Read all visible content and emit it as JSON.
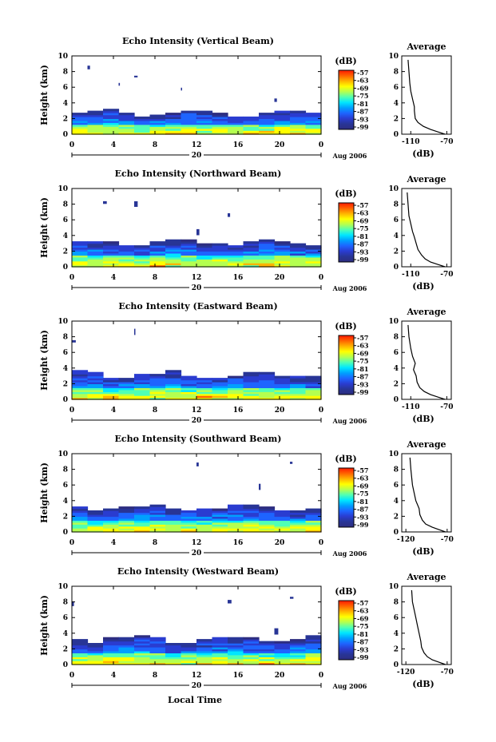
{
  "figure": {
    "xlabel": "Local Time",
    "date_label": "Aug 2006",
    "colorbar_unit": "(dB)",
    "colorbar_ticks": [
      "-57",
      "-63",
      "-69",
      "-75",
      "-81",
      "-87",
      "-93",
      "-99"
    ],
    "colormap": [
      "#ff1a00",
      "#ff6400",
      "#ffb400",
      "#ffff00",
      "#b4ff50",
      "#50ffb4",
      "#00e6ff",
      "#00a0ff",
      "#1e64ff",
      "#2a3cd0",
      "#283596",
      "#2d2d80"
    ]
  },
  "chart_data": [
    {
      "type": "heatmap",
      "title": "Echo Intensity (Vertical Beam)",
      "ylabel": "Height (km)",
      "x_ticks": [
        "0",
        "4",
        "8",
        "12",
        "16",
        "20",
        "0"
      ],
      "day_label": "20",
      "y_ticks": [
        "0",
        "2",
        "4",
        "6",
        "8",
        "10"
      ],
      "xlim": [
        0,
        24
      ],
      "ylim": [
        0,
        10
      ],
      "cloud_top_km": 2.6,
      "strong_layer_km": 1.2,
      "profile": {
        "title": "Average",
        "xlabel": "(dB)",
        "x_ticks": [
          "-110",
          "-70"
        ],
        "y_ticks": [
          "0",
          "2",
          "4",
          "6",
          "8",
          "10"
        ],
        "xlim": [
          -120,
          -65
        ],
        "ylim": [
          0,
          10
        ],
        "x": [
          -72,
          -80,
          -88,
          -96,
          -102,
          -105,
          -106,
          -106,
          -108,
          -110,
          -111,
          -112,
          -113
        ],
        "y": [
          0,
          0.3,
          0.6,
          1.0,
          1.5,
          2.0,
          3.0,
          3.5,
          4.5,
          5.5,
          6.5,
          8.0,
          9.5
        ]
      }
    },
    {
      "type": "heatmap",
      "title": "Echo Intensity (Northward Beam)",
      "ylabel": "Height (km)",
      "x_ticks": [
        "0",
        "4",
        "8",
        "12",
        "16",
        "20",
        "0"
      ],
      "day_label": "20",
      "y_ticks": [
        "0",
        "2",
        "4",
        "6",
        "8",
        "10"
      ],
      "xlim": [
        0,
        24
      ],
      "ylim": [
        0,
        10
      ],
      "cloud_top_km": 3.0,
      "strong_layer_km": 1.4,
      "profile": {
        "title": "Average",
        "xlabel": "(dB)",
        "x_ticks": [
          "-110",
          "-70"
        ],
        "y_ticks": [
          "0",
          "2",
          "4",
          "6",
          "8",
          "10"
        ],
        "xlim": [
          -120,
          -65
        ],
        "ylim": [
          0,
          10
        ],
        "x": [
          -72,
          -80,
          -88,
          -94,
          -98,
          -102,
          -104,
          -106,
          -108,
          -110,
          -112,
          -113,
          -114
        ],
        "y": [
          0,
          0.3,
          0.6,
          1.0,
          1.5,
          2.2,
          3.0,
          3.8,
          4.5,
          5.5,
          6.5,
          8.0,
          9.5
        ]
      }
    },
    {
      "type": "heatmap",
      "title": "Echo Intensity (Eastward Beam)",
      "ylabel": "Height (km)",
      "x_ticks": [
        "0",
        "4",
        "8",
        "12",
        "16",
        "20",
        "0"
      ],
      "day_label": "20",
      "y_ticks": [
        "0",
        "2",
        "4",
        "6",
        "8",
        "10"
      ],
      "xlim": [
        0,
        24
      ],
      "ylim": [
        0,
        10
      ],
      "cloud_top_km": 3.1,
      "strong_layer_km": 1.3,
      "profile": {
        "title": "Average",
        "xlabel": "(dB)",
        "x_ticks": [
          "-110",
          "-70"
        ],
        "y_ticks": [
          "0",
          "2",
          "4",
          "6",
          "8",
          "10"
        ],
        "xlim": [
          -120,
          -65
        ],
        "ylim": [
          0,
          10
        ],
        "x": [
          -72,
          -80,
          -88,
          -95,
          -100,
          -103,
          -104,
          -107,
          -105,
          -108,
          -110,
          -112,
          -113
        ],
        "y": [
          0,
          0.3,
          0.6,
          1.0,
          1.5,
          2.2,
          3.0,
          3.8,
          4.6,
          5.5,
          6.5,
          8.0,
          9.5
        ]
      }
    },
    {
      "type": "heatmap",
      "title": "Echo Intensity (Southward Beam)",
      "ylabel": "Height (km)",
      "x_ticks": [
        "0",
        "4",
        "8",
        "12",
        "16",
        "20",
        "0"
      ],
      "day_label": "20",
      "y_ticks": [
        "0",
        "2",
        "4",
        "6",
        "8",
        "10"
      ],
      "xlim": [
        0,
        24
      ],
      "ylim": [
        0,
        10
      ],
      "cloud_top_km": 3.0,
      "strong_layer_km": 1.3,
      "profile": {
        "title": "Average",
        "xlabel": "(dB)",
        "x_ticks": [
          "-120",
          "-70"
        ],
        "y_ticks": [
          "0",
          "2",
          "4",
          "6",
          "8",
          "10"
        ],
        "xlim": [
          -125,
          -65
        ],
        "ylim": [
          0,
          10
        ],
        "x": [
          -72,
          -80,
          -88,
          -96,
          -100,
          -103,
          -104,
          -108,
          -110,
          -112,
          -113,
          -114,
          -115
        ],
        "y": [
          0,
          0.3,
          0.6,
          1.0,
          1.5,
          2.2,
          3.0,
          4.0,
          5.0,
          6.0,
          7.0,
          8.0,
          9.5
        ]
      }
    },
    {
      "type": "heatmap",
      "title": "Echo Intensity (Westward Beam)",
      "ylabel": "Height (km)",
      "x_ticks": [
        "0",
        "4",
        "8",
        "12",
        "16",
        "20",
        "0"
      ],
      "day_label": "20",
      "y_ticks": [
        "0",
        "2",
        "4",
        "6",
        "8",
        "10"
      ],
      "xlim": [
        0,
        24
      ],
      "ylim": [
        0,
        10
      ],
      "cloud_top_km": 3.2,
      "strong_layer_km": 1.3,
      "profile": {
        "title": "Average",
        "xlabel": "(dB)",
        "x_ticks": [
          "-120",
          "-70"
        ],
        "y_ticks": [
          "0",
          "2",
          "4",
          "6",
          "8",
          "10"
        ],
        "xlim": [
          -125,
          -65
        ],
        "ylim": [
          0,
          10
        ],
        "x": [
          -72,
          -80,
          -88,
          -94,
          -98,
          -101,
          -102,
          -104,
          -106,
          -108,
          -110,
          -112,
          -113
        ],
        "y": [
          0,
          0.3,
          0.6,
          1.0,
          1.5,
          2.2,
          3.0,
          4.0,
          5.0,
          6.0,
          7.0,
          8.0,
          9.5
        ]
      }
    }
  ]
}
